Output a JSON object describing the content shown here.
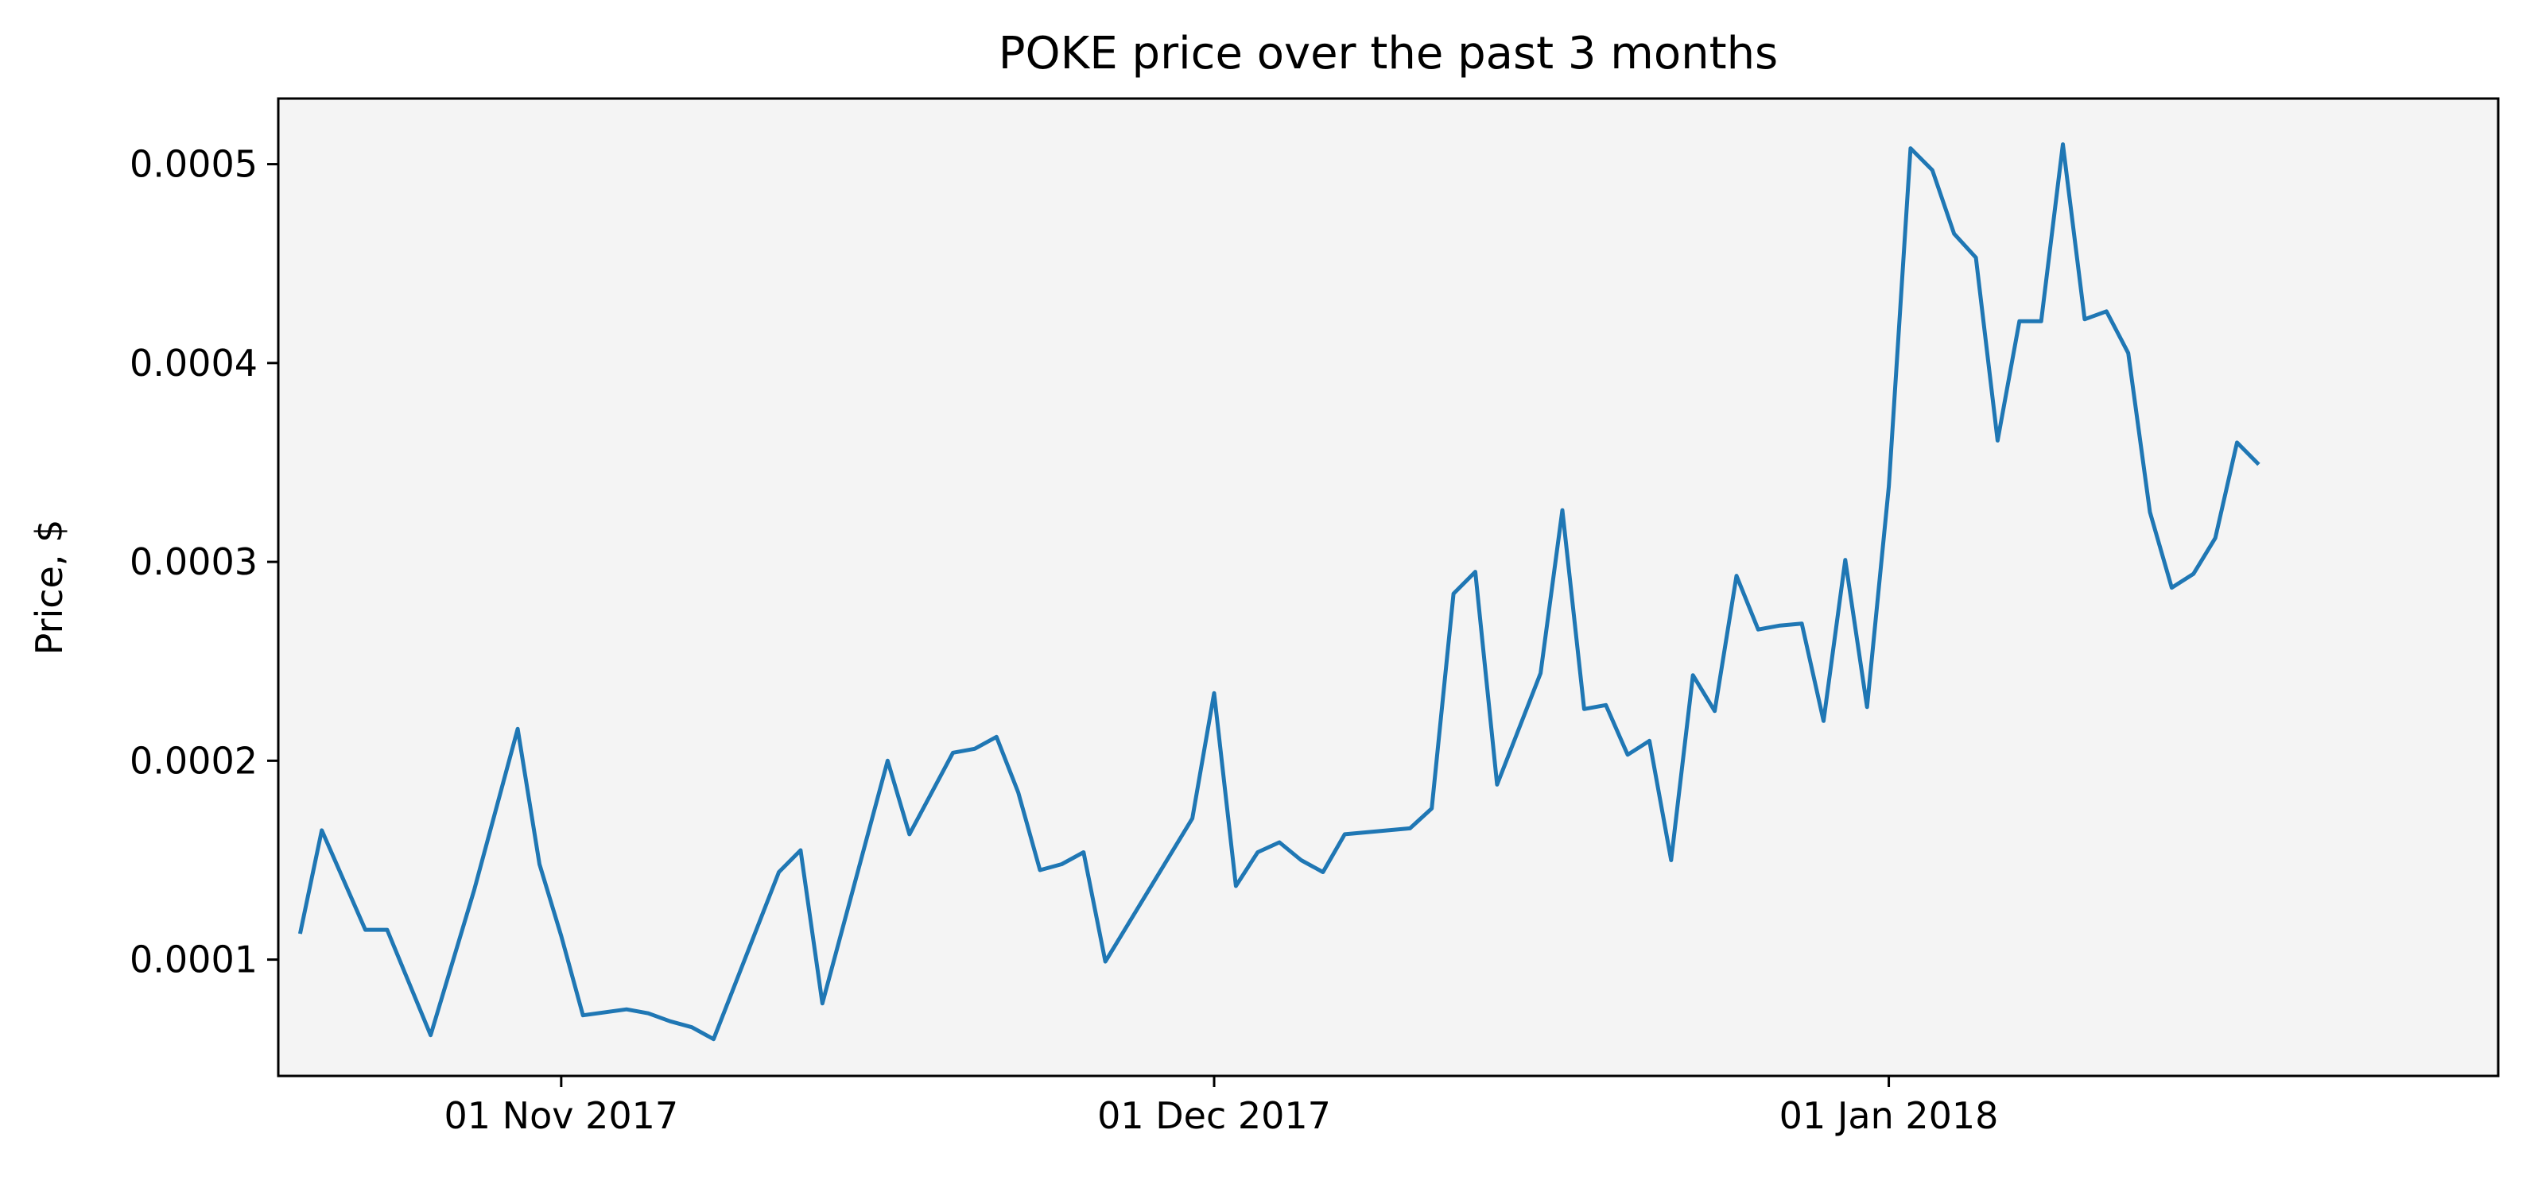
{
  "chart_data": {
    "type": "line",
    "title": "POKE price over the past 3 months",
    "xlabel": "",
    "ylabel": "Price, $",
    "grid": false,
    "colors": {
      "line": "#1f77b4",
      "plot_background": "#f4f4f4"
    },
    "x_ticks": [
      {
        "date": "2017-11-01",
        "label": "01 Nov 2017"
      },
      {
        "date": "2017-12-01",
        "label": "01 Dec 2017"
      },
      {
        "date": "2018-01-01",
        "label": "01 Jan 2018"
      }
    ],
    "y_ticks": [
      {
        "value": 0.0001,
        "label": "0.0001"
      },
      {
        "value": 0.0002,
        "label": "0.0002"
      },
      {
        "value": 0.0003,
        "label": "0.0003"
      },
      {
        "value": 0.0004,
        "label": "0.0004"
      },
      {
        "value": 0.0005,
        "label": "0.0005"
      }
    ],
    "xlim": [
      "2017-10-19",
      "2018-01-29"
    ],
    "ylim": [
      4.15e-05,
      0.000533
    ],
    "series": [
      {
        "points": [
          [
            "2017-10-20",
            0.000113
          ],
          [
            "2017-10-21",
            0.000165
          ],
          [
            "2017-10-23",
            0.000115
          ],
          [
            "2017-10-24",
            0.000115
          ],
          [
            "2017-10-26",
            6.2e-05
          ],
          [
            "2017-10-28",
            0.000135
          ],
          [
            "2017-10-30",
            0.000216
          ],
          [
            "2017-10-31",
            0.000148
          ],
          [
            "2017-11-01",
            0.000112
          ],
          [
            "2017-11-02",
            7.2e-05
          ],
          [
            "2017-11-04",
            7.5e-05
          ],
          [
            "2017-11-05",
            7.3e-05
          ],
          [
            "2017-11-06",
            6.9e-05
          ],
          [
            "2017-11-07",
            6.6e-05
          ],
          [
            "2017-11-08",
            6e-05
          ],
          [
            "2017-11-11",
            0.000144
          ],
          [
            "2017-11-12",
            0.000155
          ],
          [
            "2017-11-13",
            7.8e-05
          ],
          [
            "2017-11-16",
            0.0002
          ],
          [
            "2017-11-17",
            0.000163
          ],
          [
            "2017-11-19",
            0.000204
          ],
          [
            "2017-11-20",
            0.000206
          ],
          [
            "2017-11-21",
            0.000212
          ],
          [
            "2017-11-22",
            0.000184
          ],
          [
            "2017-11-23",
            0.000145
          ],
          [
            "2017-11-24",
            0.000148
          ],
          [
            "2017-11-25",
            0.000154
          ],
          [
            "2017-11-26",
            9.9e-05
          ],
          [
            "2017-11-30",
            0.000171
          ],
          [
            "2017-12-01",
            0.000234
          ],
          [
            "2017-12-02",
            0.000137
          ],
          [
            "2017-12-03",
            0.000154
          ],
          [
            "2017-12-04",
            0.000159
          ],
          [
            "2017-12-05",
            0.00015
          ],
          [
            "2017-12-06",
            0.000144
          ],
          [
            "2017-12-07",
            0.000163
          ],
          [
            "2017-12-10",
            0.000166
          ],
          [
            "2017-12-11",
            0.000176
          ],
          [
            "2017-12-12",
            0.000284
          ],
          [
            "2017-12-13",
            0.000295
          ],
          [
            "2017-12-14",
            0.000188
          ],
          [
            "2017-12-16",
            0.000244
          ],
          [
            "2017-12-17",
            0.000326
          ],
          [
            "2017-12-18",
            0.000226
          ],
          [
            "2017-12-19",
            0.000228
          ],
          [
            "2017-12-20",
            0.000203
          ],
          [
            "2017-12-21",
            0.00021
          ],
          [
            "2017-12-22",
            0.00015
          ],
          [
            "2017-12-23",
            0.000243
          ],
          [
            "2017-12-24",
            0.000225
          ],
          [
            "2017-12-25",
            0.000293
          ],
          [
            "2017-12-26",
            0.000266
          ],
          [
            "2017-12-27",
            0.000268
          ],
          [
            "2017-12-28",
            0.000269
          ],
          [
            "2017-12-29",
            0.00022
          ],
          [
            "2017-12-30",
            0.000301
          ],
          [
            "2017-12-31",
            0.000227
          ],
          [
            "2018-01-01",
            0.000338
          ],
          [
            "2018-01-02",
            0.000508
          ],
          [
            "2018-01-03",
            0.000497
          ],
          [
            "2018-01-04",
            0.000465
          ],
          [
            "2018-01-05",
            0.000453
          ],
          [
            "2018-01-06",
            0.000361
          ],
          [
            "2018-01-07",
            0.000421
          ],
          [
            "2018-01-08",
            0.000421
          ],
          [
            "2018-01-09",
            0.00051
          ],
          [
            "2018-01-10",
            0.000422
          ],
          [
            "2018-01-11",
            0.000426
          ],
          [
            "2018-01-12",
            0.000405
          ],
          [
            "2018-01-13",
            0.000325
          ],
          [
            "2018-01-14",
            0.000287
          ],
          [
            "2018-01-15",
            0.000294
          ],
          [
            "2018-01-16",
            0.000312
          ],
          [
            "2018-01-17",
            0.00036
          ],
          [
            "2018-01-18",
            0.000349
          ]
        ]
      }
    ]
  }
}
